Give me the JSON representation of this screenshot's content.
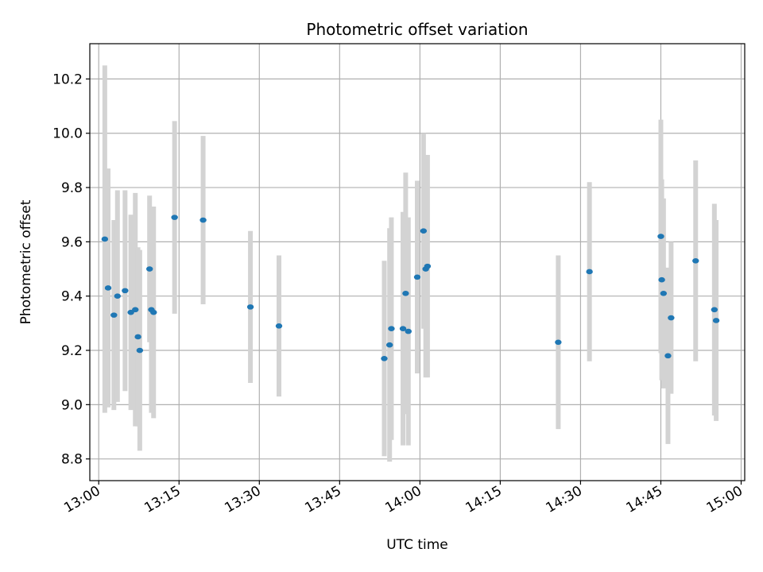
{
  "chart_data": {
    "type": "scatter",
    "title": "Photometric offset variation",
    "xlabel": "UTC time",
    "ylabel": "Photometric offset",
    "grid": true,
    "x_format": "HH:MM",
    "xlim": [
      "12:58:20",
      "15:00:40"
    ],
    "ylim": [
      8.72,
      10.33
    ],
    "xticks": [
      "13:00",
      "13:15",
      "13:30",
      "13:45",
      "14:00",
      "14:15",
      "14:30",
      "14:45",
      "15:00"
    ],
    "yticks": [
      "8.8",
      "9.0",
      "9.2",
      "9.4",
      "9.6",
      "9.8",
      "10.0",
      "10.2"
    ],
    "marker_color": "#1f77b4",
    "errorbar_color": "#d3d3d3",
    "series": [
      {
        "points": [
          {
            "x": "13:01:08",
            "y": 9.61,
            "err": 0.64
          },
          {
            "x": "13:01:45",
            "y": 9.43,
            "err": 0.44
          },
          {
            "x": "13:02:50",
            "y": 9.33,
            "err": 0.35
          },
          {
            "x": "13:03:30",
            "y": 9.4,
            "err": 0.39
          },
          {
            "x": "13:04:55",
            "y": 9.42,
            "err": 0.37
          },
          {
            "x": "13:06:00",
            "y": 9.34,
            "err": 0.36
          },
          {
            "x": "13:06:50",
            "y": 9.35,
            "err": 0.43
          },
          {
            "x": "13:07:20",
            "y": 9.25,
            "err": 0.33
          },
          {
            "x": "13:07:40",
            "y": 9.2,
            "err": 0.37
          },
          {
            "x": "13:09:30",
            "y": 9.5,
            "err": 0.27
          },
          {
            "x": "13:09:50",
            "y": 9.35,
            "err": 0.38
          },
          {
            "x": "13:10:15",
            "y": 9.34,
            "err": 0.39
          },
          {
            "x": "13:14:10",
            "y": 9.69,
            "err": 0.355
          },
          {
            "x": "13:19:30",
            "y": 9.68,
            "err": 0.31
          },
          {
            "x": "13:28:20",
            "y": 9.36,
            "err": 0.28
          },
          {
            "x": "13:33:40",
            "y": 9.29,
            "err": 0.26
          },
          {
            "x": "13:53:20",
            "y": 9.17,
            "err": 0.36
          },
          {
            "x": "13:54:20",
            "y": 9.22,
            "err": 0.43
          },
          {
            "x": "13:54:40",
            "y": 9.28,
            "err": 0.41
          },
          {
            "x": "13:56:50",
            "y": 9.28,
            "err": 0.43
          },
          {
            "x": "13:57:20",
            "y": 9.41,
            "err": 0.445
          },
          {
            "x": "13:57:50",
            "y": 9.27,
            "err": 0.42
          },
          {
            "x": "13:59:30",
            "y": 9.47,
            "err": 0.355
          },
          {
            "x": "14:00:40",
            "y": 9.64,
            "err": 0.36
          },
          {
            "x": "14:01:05",
            "y": 9.5,
            "err": 0.4
          },
          {
            "x": "14:01:25",
            "y": 9.51,
            "err": 0.41
          },
          {
            "x": "14:25:50",
            "y": 9.23,
            "err": 0.32
          },
          {
            "x": "14:31:40",
            "y": 9.49,
            "err": 0.33
          },
          {
            "x": "14:45:00",
            "y": 9.62,
            "err": 0.43
          },
          {
            "x": "14:45:10",
            "y": 9.46,
            "err": 0.37
          },
          {
            "x": "14:45:30",
            "y": 9.41,
            "err": 0.35
          },
          {
            "x": "14:46:20",
            "y": 9.18,
            "err": 0.325
          },
          {
            "x": "14:46:55",
            "y": 9.32,
            "err": 0.28
          },
          {
            "x": "14:51:30",
            "y": 9.53,
            "err": 0.37
          },
          {
            "x": "14:55:00",
            "y": 9.35,
            "err": 0.39
          },
          {
            "x": "14:55:20",
            "y": 9.31,
            "err": 0.37
          }
        ]
      }
    ]
  }
}
